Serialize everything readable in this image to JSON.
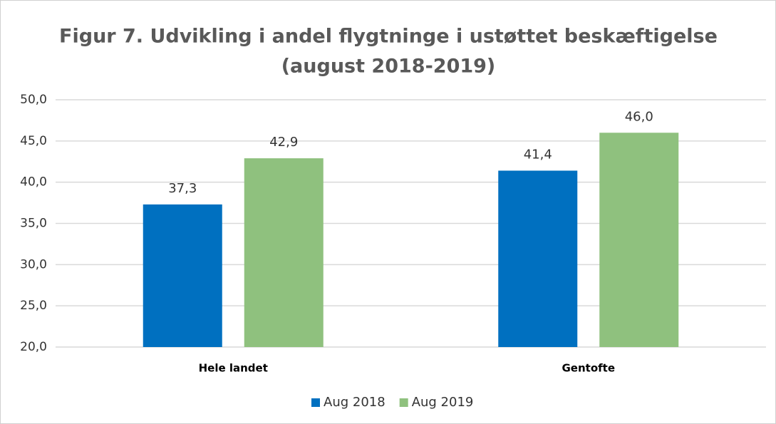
{
  "chart_data": {
    "type": "bar",
    "title": [
      "Figur 7. Udvikling i andel flygtninge i ustøttet beskæftigelse",
      "(august 2018-2019)"
    ],
    "categories": [
      "Hele landet",
      "Gentofte"
    ],
    "series": [
      {
        "name": "Aug 2018",
        "color": "#0070c0",
        "values": [
          37.3,
          41.4
        ],
        "value_labels": [
          "37,3",
          "41,4"
        ]
      },
      {
        "name": "Aug 2019",
        "color": "#8fc17e",
        "values": [
          42.9,
          46.0
        ],
        "value_labels": [
          "42,9",
          "46,0"
        ]
      }
    ],
    "ylim": [
      20,
      50
    ],
    "yticks": [
      {
        "value": 20,
        "label": "20,0"
      },
      {
        "value": 25,
        "label": "25,0"
      },
      {
        "value": 30,
        "label": "30,0"
      },
      {
        "value": 35,
        "label": "35,0"
      },
      {
        "value": 40,
        "label": "40,0"
      },
      {
        "value": 45,
        "label": "45,0"
      },
      {
        "value": 50,
        "label": "50,0"
      }
    ],
    "grid": true,
    "legend": "bottom"
  }
}
